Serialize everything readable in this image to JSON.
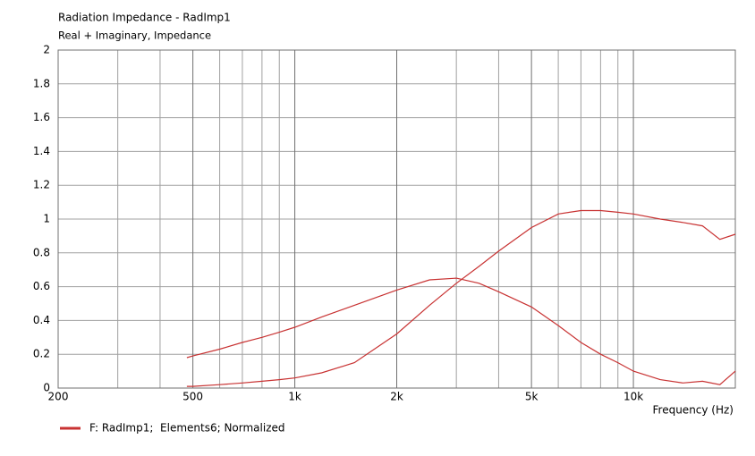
{
  "chart_data": {
    "type": "line",
    "title": "Radiation Impedance - RadImp1",
    "subtitle": "Real + Imaginary, Impedance",
    "x_label": "Frequency  (Hz)",
    "x_scale": "log",
    "xlim": [
      200,
      20000
    ],
    "xticks": [
      200,
      500,
      {
        "value": 1000,
        "label": "1k"
      },
      {
        "value": 2000,
        "label": "2k"
      },
      {
        "value": 5000,
        "label": "5k"
      },
      {
        "value": 10000,
        "label": "10k"
      }
    ],
    "x_minor_grid": [
      300,
      400,
      600,
      700,
      800,
      900,
      3000,
      4000,
      6000,
      7000,
      8000,
      9000
    ],
    "ylim": [
      0,
      2
    ],
    "yticks": [
      0,
      0.2,
      0.4,
      0.6,
      0.8,
      1,
      1.2,
      1.4,
      1.6,
      1.8,
      2
    ],
    "grid": true,
    "x": [
      480,
      500,
      600,
      700,
      800,
      900,
      1000,
      1200,
      1500,
      2000,
      2500,
      3000,
      3500,
      4000,
      5000,
      6000,
      7000,
      8000,
      9000,
      10000,
      12000,
      14000,
      16000,
      18000,
      20000
    ],
    "series": [
      {
        "name": "F: RadImp1;  Elements6; Normalized",
        "color": "#c83232",
        "values": [
          0.01,
          0.01,
          0.02,
          0.03,
          0.04,
          0.05,
          0.06,
          0.09,
          0.15,
          0.32,
          0.49,
          0.62,
          0.72,
          0.81,
          0.95,
          1.03,
          1.05,
          1.05,
          1.04,
          1.03,
          1.0,
          0.98,
          0.96,
          0.88,
          0.91
        ]
      },
      {
        "color": "#c83232",
        "values": [
          0.18,
          0.19,
          0.23,
          0.27,
          0.3,
          0.33,
          0.36,
          0.42,
          0.49,
          0.58,
          0.64,
          0.65,
          0.62,
          0.57,
          0.48,
          0.37,
          0.27,
          0.2,
          0.15,
          0.1,
          0.05,
          0.03,
          0.04,
          0.02,
          0.1
        ]
      }
    ]
  }
}
